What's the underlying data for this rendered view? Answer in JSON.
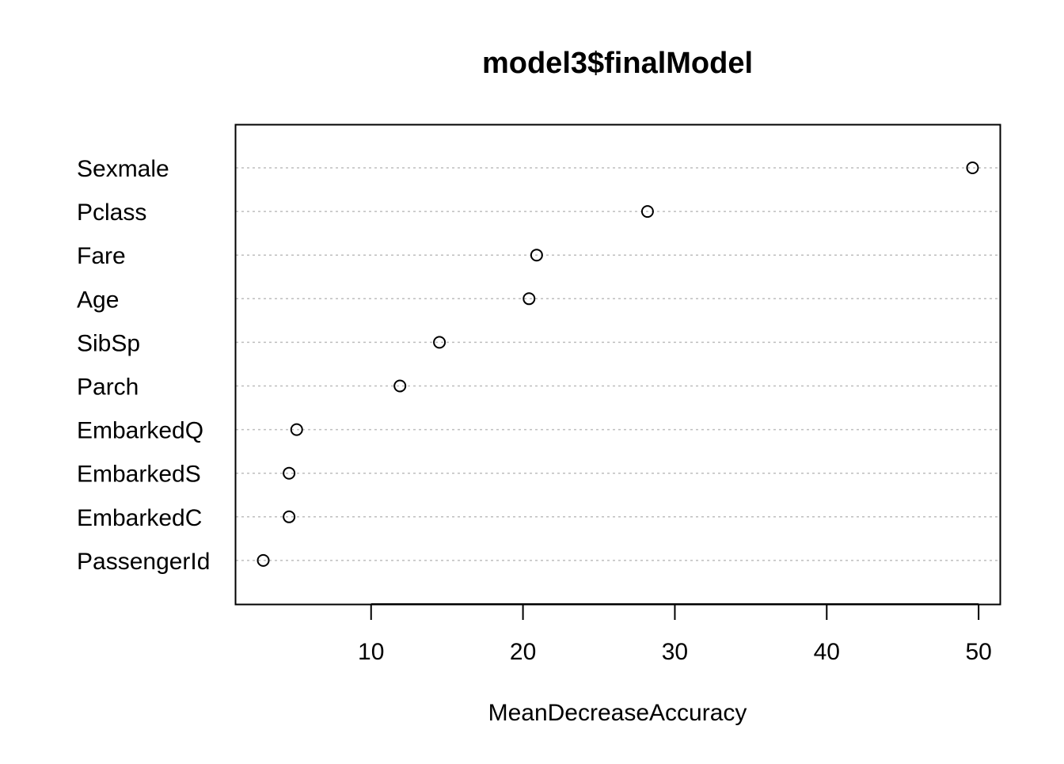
{
  "chart_data": {
    "type": "scatter",
    "title": "model3$finalModel",
    "xlabel": "MeanDecreaseAccuracy",
    "ylabel": "",
    "xlim": [
      1.1,
      51.4
    ],
    "xticks": [
      10,
      20,
      30,
      40,
      50
    ],
    "grid": "dotted horizontal guide lines",
    "categories": [
      "Sexmale",
      "Pclass",
      "Fare",
      "Age",
      "SibSp",
      "Parch",
      "EmbarkedQ",
      "EmbarkedS",
      "EmbarkedC",
      "PassengerId"
    ],
    "values": [
      49.6,
      28.2,
      20.9,
      20.4,
      14.5,
      11.9,
      5.1,
      4.6,
      4.6,
      2.9
    ],
    "marker": "open-circle",
    "colors": {
      "marker": "#000000",
      "guide": "#bebebe",
      "axis": "#000000"
    }
  }
}
